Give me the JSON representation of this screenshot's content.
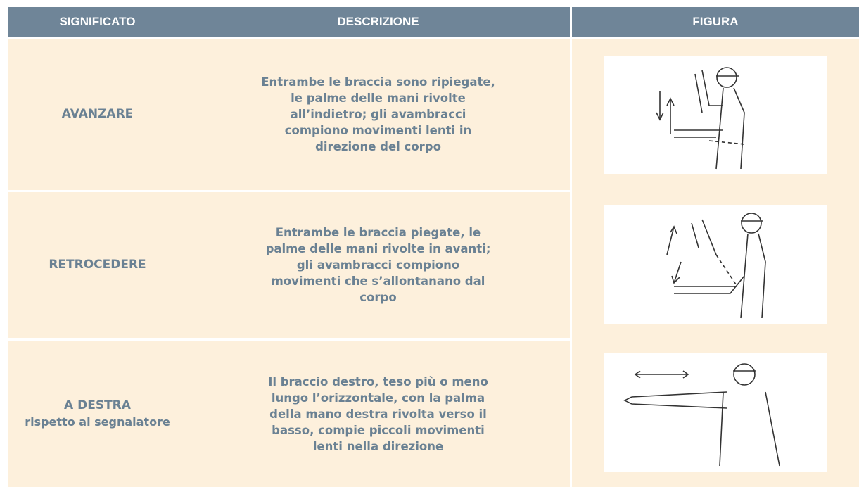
{
  "header": {
    "columns": [
      "SIGNIFICATO",
      "DESCRIZIONE",
      "FIGURA"
    ]
  },
  "table": {
    "rows": [
      {
        "meaning": [
          "AVANZARE"
        ],
        "description": [
          "Entrambe le braccia sono ripiegate,",
          "le palme delle mani rivolte",
          "all’indietro; gli avambracci",
          "compiono movimenti lenti in",
          "direzione del corpo"
        ]
      },
      {
        "meaning": [
          "RETROCEDERE"
        ],
        "description": [
          "Entrambe le braccia piegate, le",
          "palme delle mani rivolte in avanti;",
          "gli avambracci compiono",
          "movimenti che s’allontanano dal",
          "corpo"
        ]
      },
      {
        "meaning": [
          "A DESTRA",
          "rispetto al segnalatore"
        ],
        "description": [
          "Il braccio destro, teso più o meno",
          "lungo l’orizzontale, con la palma",
          "della mano destra rivolta verso il",
          "basso, compie piccoli movimenti",
          "lenti nella direzione"
        ]
      }
    ]
  }
}
